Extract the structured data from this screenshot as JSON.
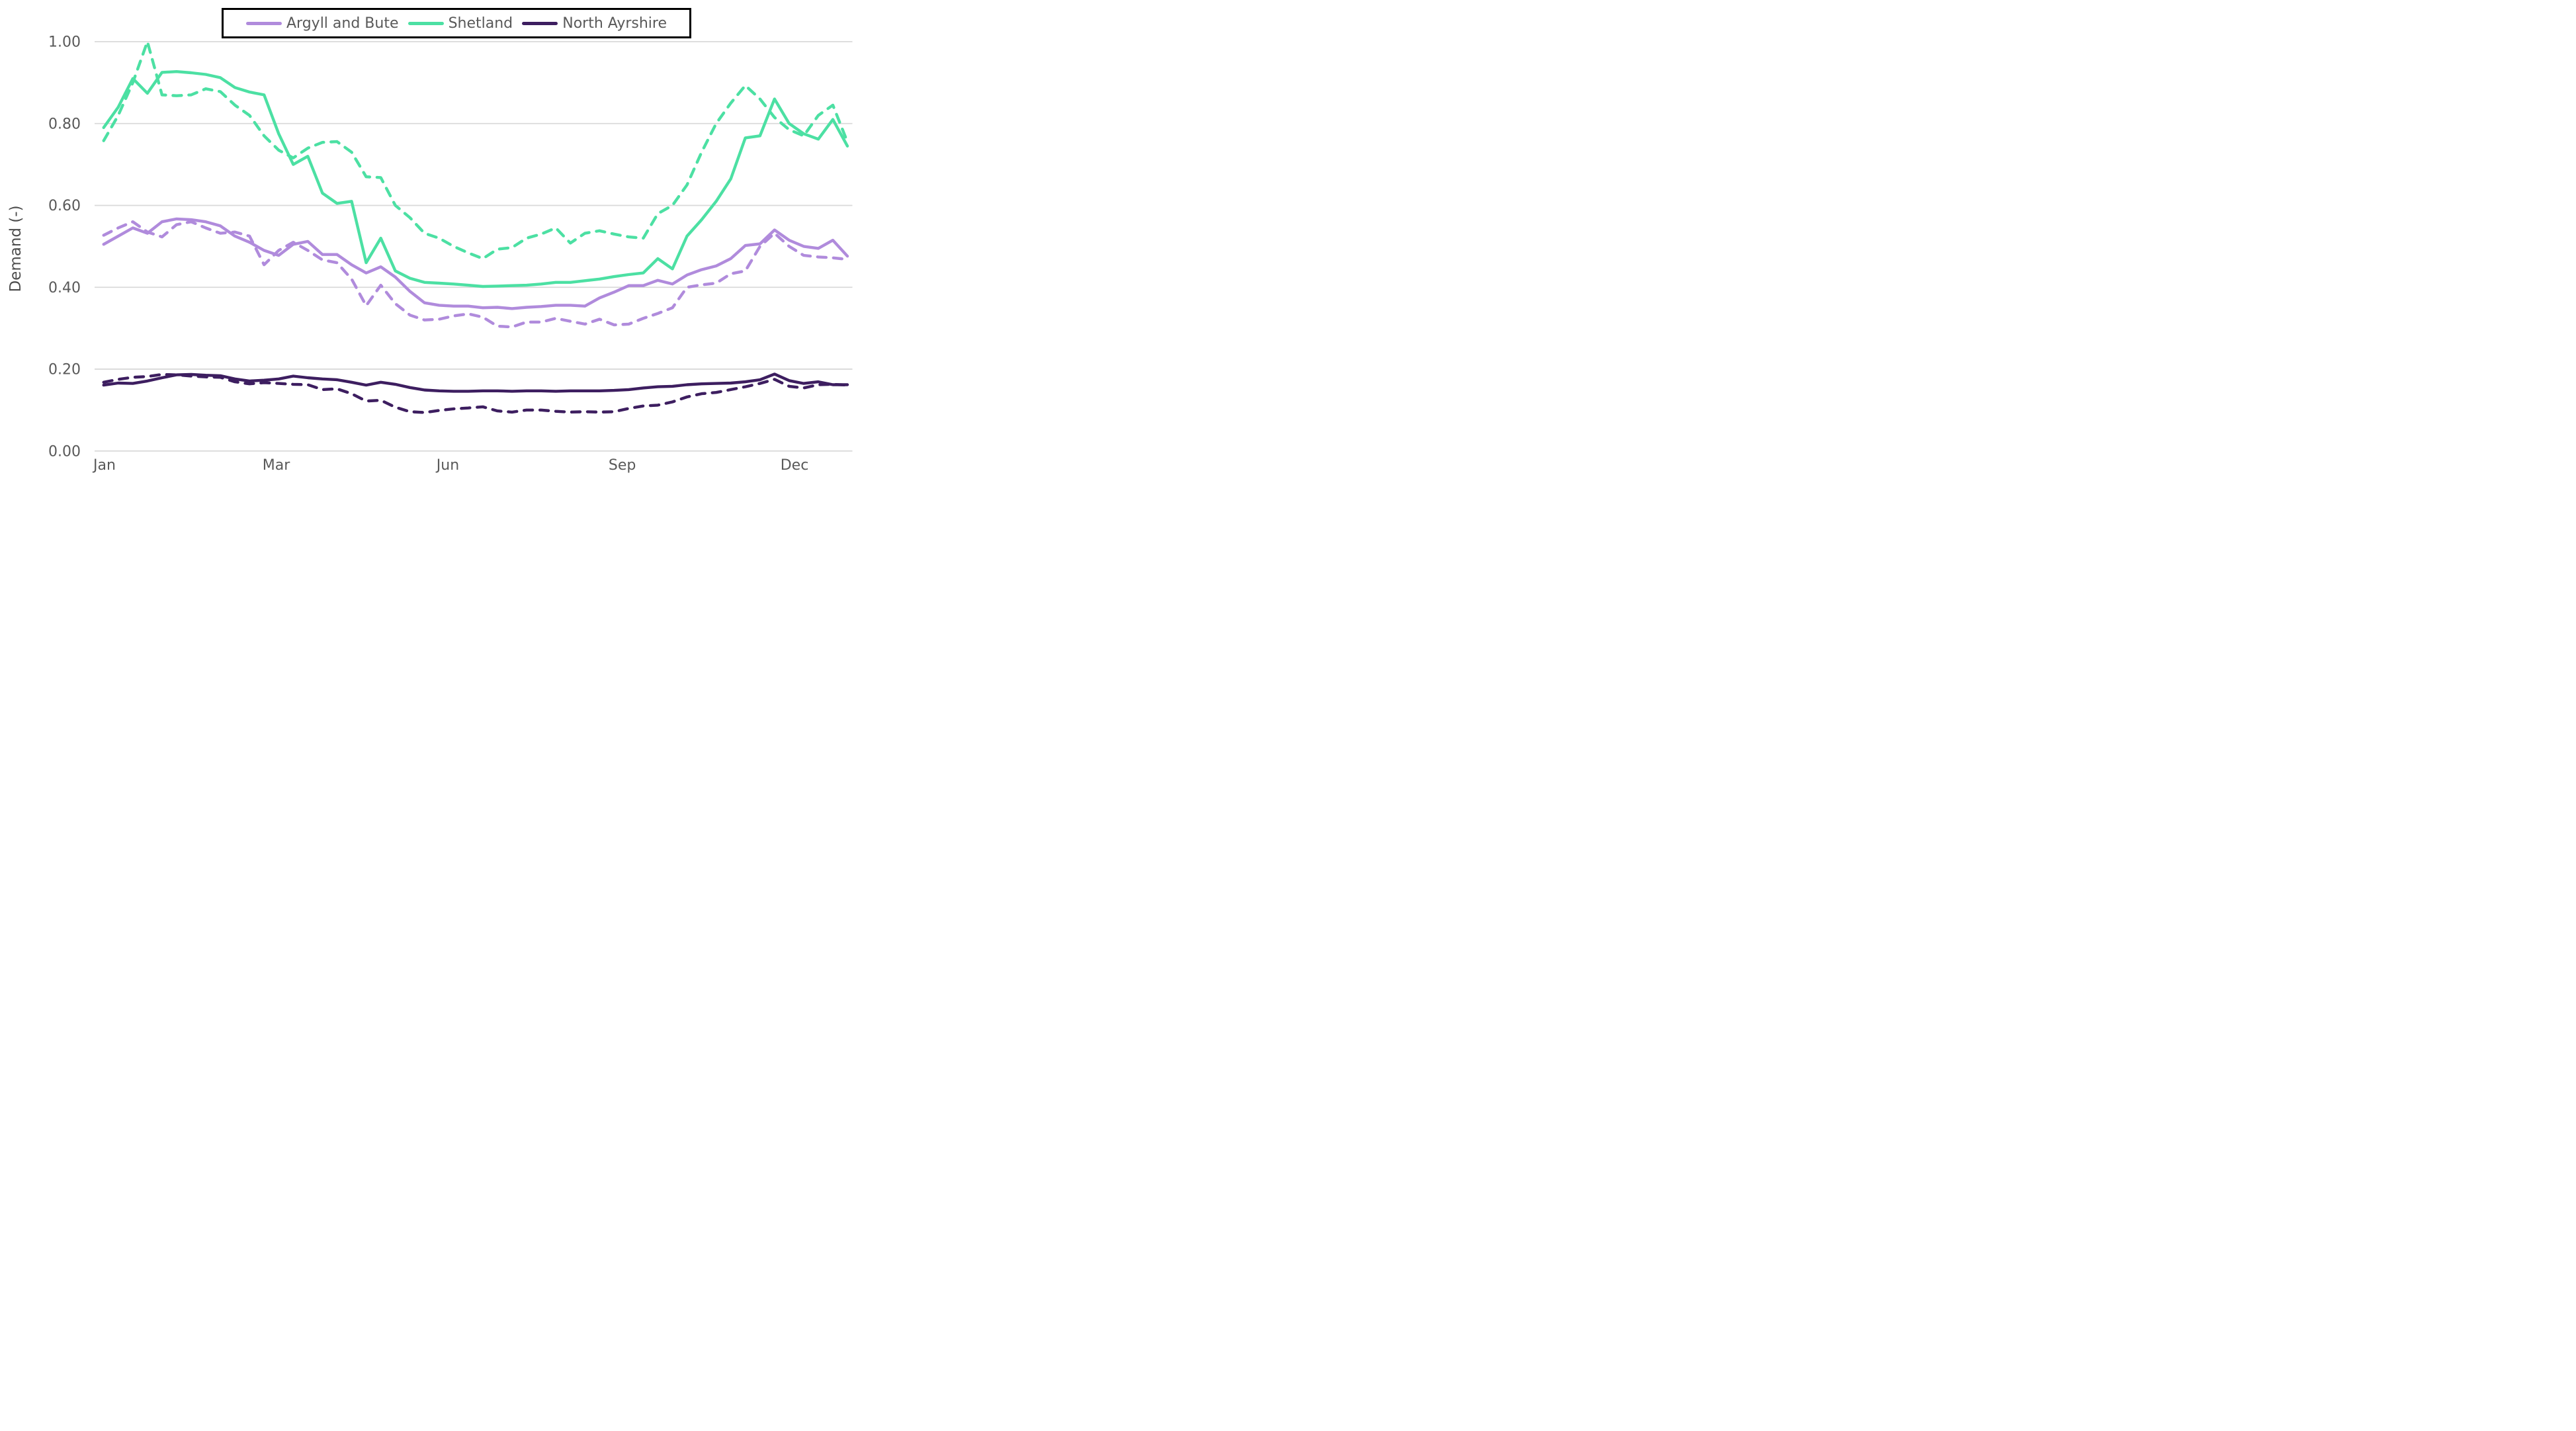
{
  "page": {
    "background": "#ffffff"
  },
  "styles": {
    "gridline_color": "#d9d9d9",
    "tick_label_color": "#595959",
    "axis_title_color": "#4d4d4d",
    "legend_text_color": "#595959",
    "legend_border_color": "#000000",
    "plot_background": "#ffffff"
  },
  "legend": {
    "position": "top-center",
    "items": [
      {
        "label": "Argyll and Bute",
        "color": "#b08bdc"
      },
      {
        "label": "Shetland",
        "color": "#4ce0a3"
      },
      {
        "label": "North Ayrshire",
        "color": "#3d1e60"
      }
    ]
  },
  "chart_data": {
    "type": "line",
    "title": "",
    "xlabel": "",
    "ylabel": "Demand (-)",
    "grid": "horizontal-only",
    "x_axis": {
      "unit": "weekly points spanning Jan to late Dec (52 points)",
      "tick_labels": [
        "Jan",
        "Mar",
        "Jun",
        "Sep",
        "Dec"
      ],
      "tick_week_positions": [
        0.06,
        11.83,
        23.6,
        35.56,
        47.37
      ]
    },
    "y_axis": {
      "range": [
        0.0,
        1.0
      ],
      "tick_values": [
        0.0,
        0.2,
        0.4,
        0.6,
        0.8,
        1.0
      ],
      "tick_labels": [
        "0.00",
        "0.20",
        "0.40",
        "0.60",
        "0.80",
        "1.00"
      ]
    },
    "series": [
      {
        "name": "Argyll and Bute",
        "style": "solid",
        "color": "#b08bdc",
        "values": [
          0.505,
          0.525,
          0.545,
          0.532,
          0.56,
          0.567,
          0.565,
          0.56,
          0.55,
          0.525,
          0.51,
          0.49,
          0.478,
          0.505,
          0.512,
          0.48,
          0.48,
          0.455,
          0.435,
          0.45,
          0.425,
          0.39,
          0.362,
          0.356,
          0.354,
          0.354,
          0.35,
          0.351,
          0.348,
          0.351,
          0.353,
          0.356,
          0.356,
          0.354,
          0.374,
          0.388,
          0.404,
          0.404,
          0.417,
          0.408,
          0.43,
          0.443,
          0.452,
          0.47,
          0.502,
          0.506,
          0.54,
          0.515,
          0.5,
          0.495,
          0.515,
          0.476
        ]
      },
      {
        "name": "Argyll and Bute",
        "style": "dashed",
        "color": "#b08bdc",
        "values": [
          0.527,
          0.545,
          0.56,
          0.535,
          0.523,
          0.553,
          0.56,
          0.545,
          0.532,
          0.535,
          0.525,
          0.455,
          0.49,
          0.51,
          0.49,
          0.467,
          0.46,
          0.42,
          0.355,
          0.405,
          0.36,
          0.332,
          0.32,
          0.322,
          0.33,
          0.335,
          0.327,
          0.305,
          0.303,
          0.315,
          0.315,
          0.324,
          0.317,
          0.31,
          0.322,
          0.308,
          0.31,
          0.324,
          0.336,
          0.35,
          0.4,
          0.406,
          0.41,
          0.433,
          0.44,
          0.5,
          0.532,
          0.5,
          0.478,
          0.474,
          0.472,
          0.468
        ]
      },
      {
        "name": "Shetland",
        "style": "solid",
        "color": "#4ce0a3",
        "values": [
          0.79,
          0.84,
          0.91,
          0.874,
          0.925,
          0.927,
          0.924,
          0.92,
          0.912,
          0.888,
          0.877,
          0.87,
          0.775,
          0.7,
          0.72,
          0.63,
          0.605,
          0.61,
          0.46,
          0.52,
          0.44,
          0.422,
          0.412,
          0.41,
          0.408,
          0.405,
          0.402,
          0.403,
          0.404,
          0.405,
          0.408,
          0.412,
          0.412,
          0.416,
          0.42,
          0.426,
          0.431,
          0.435,
          0.47,
          0.445,
          0.525,
          0.565,
          0.61,
          0.665,
          0.765,
          0.77,
          0.86,
          0.8,
          0.775,
          0.762,
          0.81,
          0.745
        ]
      },
      {
        "name": "Shetland",
        "style": "dashed",
        "color": "#4ce0a3",
        "values": [
          0.758,
          0.82,
          0.9,
          1.0,
          0.87,
          0.868,
          0.87,
          0.885,
          0.878,
          0.845,
          0.82,
          0.77,
          0.735,
          0.716,
          0.74,
          0.754,
          0.756,
          0.73,
          0.67,
          0.668,
          0.6,
          0.57,
          0.532,
          0.52,
          0.5,
          0.484,
          0.47,
          0.493,
          0.497,
          0.52,
          0.53,
          0.545,
          0.508,
          0.532,
          0.538,
          0.53,
          0.523,
          0.52,
          0.58,
          0.6,
          0.65,
          0.73,
          0.8,
          0.85,
          0.893,
          0.86,
          0.815,
          0.785,
          0.77,
          0.82,
          0.845,
          0.755
        ]
      },
      {
        "name": "North Ayrshire",
        "style": "solid",
        "color": "#3d1e60",
        "values": [
          0.161,
          0.166,
          0.165,
          0.171,
          0.179,
          0.186,
          0.187,
          0.185,
          0.184,
          0.176,
          0.171,
          0.173,
          0.176,
          0.183,
          0.179,
          0.176,
          0.174,
          0.168,
          0.161,
          0.168,
          0.163,
          0.155,
          0.149,
          0.147,
          0.146,
          0.146,
          0.147,
          0.147,
          0.146,
          0.147,
          0.147,
          0.146,
          0.147,
          0.147,
          0.147,
          0.148,
          0.15,
          0.154,
          0.157,
          0.158,
          0.162,
          0.164,
          0.165,
          0.166,
          0.169,
          0.174,
          0.188,
          0.172,
          0.165,
          0.169,
          0.162,
          0.162
        ]
      },
      {
        "name": "North Ayrshire",
        "style": "dashed",
        "color": "#3d1e60",
        "values": [
          0.168,
          0.175,
          0.18,
          0.182,
          0.187,
          0.186,
          0.183,
          0.181,
          0.18,
          0.169,
          0.164,
          0.167,
          0.165,
          0.163,
          0.162,
          0.15,
          0.152,
          0.14,
          0.122,
          0.124,
          0.107,
          0.096,
          0.094,
          0.099,
          0.103,
          0.105,
          0.108,
          0.098,
          0.095,
          0.1,
          0.1,
          0.097,
          0.095,
          0.096,
          0.095,
          0.096,
          0.104,
          0.11,
          0.112,
          0.12,
          0.132,
          0.14,
          0.143,
          0.15,
          0.157,
          0.165,
          0.175,
          0.158,
          0.154,
          0.162,
          0.163,
          0.161
        ]
      }
    ]
  }
}
